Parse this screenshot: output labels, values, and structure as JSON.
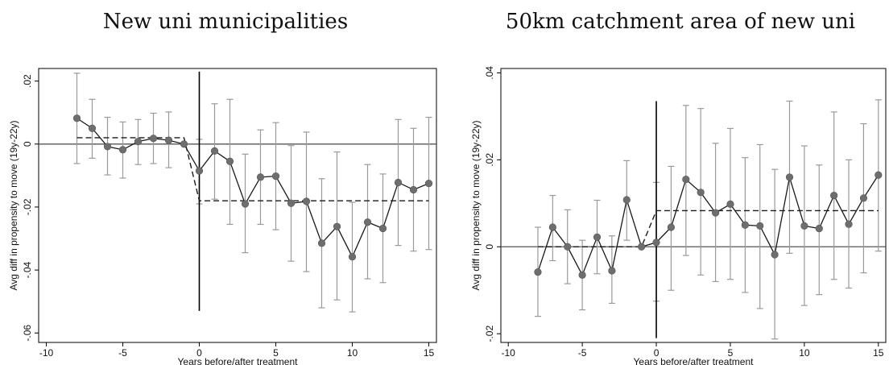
{
  "colors": {
    "axis": "#000000",
    "zero_line": "#555555",
    "ci": "#9a9a9a",
    "series_line": "#1a1a1a",
    "marker": "#6e6e6e",
    "step_line": "#1a1a1a",
    "event_line": "#000000"
  },
  "chart_data": [
    {
      "type": "line",
      "title": "New uni municipalities",
      "xlabel": "Years before/after treatment",
      "ylabel": "Avg diff in propensity to move (19y-22y)",
      "xlim": [
        -10.5,
        15.5
      ],
      "ylim": [
        -0.063,
        0.024
      ],
      "xticks": [
        -10,
        -5,
        0,
        5,
        10,
        15
      ],
      "xtick_labels": [
        "-10",
        "-5",
        "0",
        "5",
        "10",
        "15"
      ],
      "yticks": [
        -0.06,
        -0.04,
        -0.02,
        0,
        0.02
      ],
      "ytick_labels": [
        "-.06",
        "-.04",
        "-.02",
        "0",
        ".02"
      ],
      "zero_line": 0,
      "event_line": {
        "x": 0,
        "y_range": [
          -0.053,
          0.023
        ]
      },
      "step_line": {
        "pre_value": 0.002,
        "post_value": -0.018,
        "pre_x": [
          -8,
          -1
        ],
        "post_x": [
          0,
          15
        ]
      },
      "series": [
        {
          "x": [
            -8,
            -7,
            -6,
            -5,
            -4,
            -3,
            -2,
            -1,
            0,
            1,
            2,
            3,
            4,
            5,
            6,
            7,
            8,
            9,
            10,
            11,
            12,
            13,
            14,
            15
          ],
          "values": [
            0.0082,
            0.005,
            -0.0008,
            -0.0018,
            0.0008,
            0.0018,
            0.0012,
            0.0,
            -0.0085,
            -0.0022,
            -0.0055,
            -0.019,
            -0.0105,
            -0.0102,
            -0.0188,
            -0.0182,
            -0.0315,
            -0.0262,
            -0.0358,
            -0.0248,
            -0.0268,
            -0.0122,
            -0.0145,
            -0.0125
          ],
          "ci_low": [
            -0.0062,
            -0.0045,
            -0.0098,
            -0.0108,
            -0.0065,
            -0.0062,
            -0.0075,
            null,
            -0.019,
            -0.0175,
            -0.0255,
            -0.0345,
            -0.0255,
            -0.0272,
            -0.0372,
            -0.0405,
            -0.052,
            -0.0495,
            -0.0533,
            -0.0428,
            -0.044,
            -0.0322,
            -0.034,
            -0.0335
          ],
          "ci_high": [
            0.0225,
            0.0142,
            0.0085,
            0.007,
            0.0078,
            0.0098,
            0.0102,
            null,
            0.0015,
            0.0128,
            0.0142,
            -0.0032,
            0.0045,
            0.0068,
            -0.0005,
            0.0038,
            -0.011,
            -0.0025,
            -0.0185,
            -0.0065,
            -0.0095,
            0.0078,
            0.005,
            0.0085
          ]
        }
      ]
    },
    {
      "type": "line",
      "title": "50km catchment area of new uni",
      "xlabel": "Years before/after treatment",
      "ylabel": "Avg diff in propensity to move (19y-22y)",
      "xlim": [
        -10.5,
        15.5
      ],
      "ylim": [
        -0.022,
        0.041
      ],
      "xticks": [
        -10,
        -5,
        0,
        5,
        10,
        15
      ],
      "xtick_labels": [
        "-10",
        "-5",
        "0",
        "5",
        "10",
        "15"
      ],
      "yticks": [
        -0.02,
        0,
        0.02,
        0.04
      ],
      "ytick_labels": [
        "-.02",
        "0",
        ".02",
        ".04"
      ],
      "zero_line": 0,
      "event_line": {
        "x": 0,
        "y_range": [
          -0.021,
          0.0335
        ]
      },
      "step_line": {
        "pre_value": 0.0,
        "post_value": 0.0083,
        "pre_x": [
          -8,
          -1
        ],
        "post_x": [
          0,
          15
        ]
      },
      "series": [
        {
          "x": [
            -8,
            -7,
            -6,
            -5,
            -4,
            -3,
            -2,
            -1,
            0,
            1,
            2,
            3,
            4,
            5,
            6,
            7,
            8,
            9,
            10,
            11,
            12,
            13,
            14,
            15
          ],
          "values": [
            -0.0058,
            0.0045,
            0.0,
            -0.0065,
            0.0022,
            -0.0055,
            0.0108,
            0.0,
            0.001,
            0.0045,
            0.0155,
            0.0125,
            0.0078,
            0.0098,
            0.005,
            0.0048,
            -0.0018,
            0.016,
            0.0048,
            0.0042,
            0.0118,
            0.0052,
            0.0112,
            0.0165
          ],
          "ci_low": [
            -0.016,
            -0.0032,
            -0.0085,
            -0.0145,
            -0.0062,
            -0.013,
            0.0015,
            null,
            -0.0125,
            -0.01,
            -0.002,
            -0.0065,
            -0.008,
            -0.0075,
            -0.0105,
            -0.0142,
            -0.0212,
            -0.0015,
            -0.0135,
            -0.011,
            -0.0075,
            -0.0095,
            -0.006,
            -0.001
          ],
          "ci_high": [
            0.0045,
            0.0118,
            0.0085,
            0.0015,
            0.0107,
            0.0025,
            0.0198,
            null,
            0.0148,
            0.0185,
            0.0325,
            0.0318,
            0.0238,
            0.0272,
            0.0205,
            0.0235,
            0.0178,
            0.0335,
            0.0232,
            0.0188,
            0.031,
            0.02,
            0.0283,
            0.0338
          ]
        }
      ]
    }
  ]
}
